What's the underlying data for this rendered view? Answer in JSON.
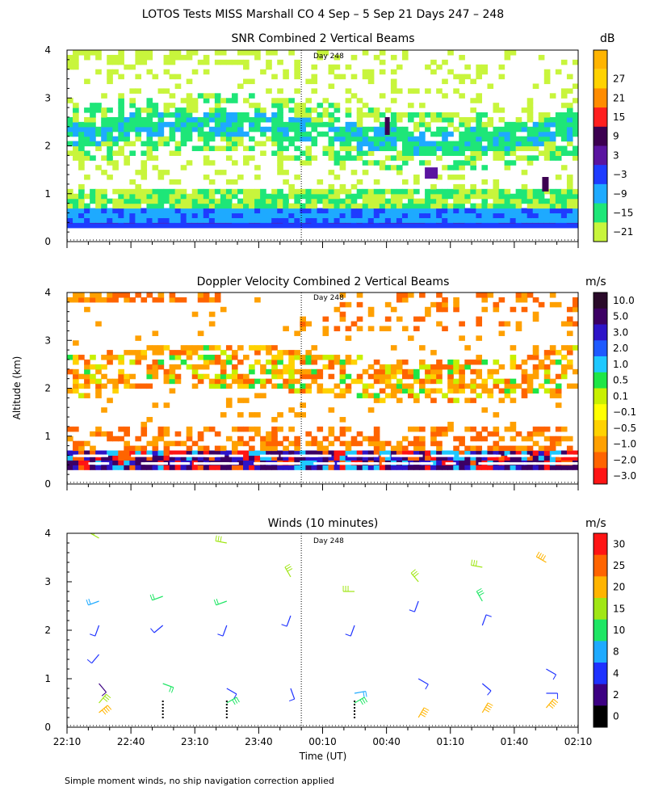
{
  "title": "LOTOS Tests MISS Marshall CO    4 Sep –  5 Sep 21 Days 247 – 248",
  "footnote": "Simple moment winds, no ship navigation correction applied",
  "ylabel_shared": "Altitude (km)",
  "chart_data": [
    {
      "type": "heatmap",
      "title": "SNR Combined 2 Vertical Beams",
      "units": "dB",
      "day_marker": "Day 248",
      "day_marker_time": "00:00",
      "xlim_hours_from_22": [
        0,
        4
      ],
      "ylim": [
        0,
        4
      ],
      "yticks": [
        "0",
        "1",
        "2",
        "3",
        "4"
      ],
      "colorbar": {
        "labels": [
          "27",
          "21",
          "15",
          "9",
          "3",
          "−3",
          "−9",
          "−15",
          "−21"
        ],
        "colors": [
          "#ffd200",
          "#ff8c00",
          "#ff1e1e",
          "#3c0050",
          "#5a14a0",
          "#1e3cff",
          "#1eaaff",
          "#1ee678",
          "#c8f53c"
        ],
        "top_color": "#ffb400"
      }
    },
    {
      "type": "heatmap",
      "title": "Doppler Velocity Combined 2 Vertical Beams",
      "units": "m/s",
      "day_marker": "Day 248",
      "day_marker_time": "00:00",
      "xlim_hours_from_22": [
        0,
        4
      ],
      "ylim": [
        0,
        4
      ],
      "yticks": [
        "0",
        "1",
        "2",
        "3",
        "4"
      ],
      "colorbar": {
        "labels": [
          "10.0",
          "5.0",
          "3.0",
          "2.0",
          "1.0",
          "0.5",
          "0.1",
          "−0.1",
          "−0.5",
          "−1.0",
          "−2.0",
          "−3.0"
        ],
        "colors": [
          "#2a0a2a",
          "#3c0064",
          "#2d14c8",
          "#1e5aff",
          "#1ec8ff",
          "#1ee646",
          "#c8f000",
          "#ffff00",
          "#ffd200",
          "#ffa000",
          "#ff6400",
          "#ff1414"
        ]
      }
    },
    {
      "type": "scatter",
      "title": "Winds (10 minutes)",
      "units": "m/s",
      "day_marker": "Day 248",
      "day_marker_time": "00:00",
      "xlabel": "Time (UT)",
      "xticks": [
        "22:10",
        "22:40",
        "23:10",
        "23:40",
        "00:10",
        "00:40",
        "01:10",
        "01:40",
        "02:10"
      ],
      "xlim_hours_from_22": [
        0,
        4
      ],
      "ylim": [
        0,
        4
      ],
      "yticks": [
        "0",
        "1",
        "2",
        "3",
        "4"
      ],
      "colorbar": {
        "labels": [
          "30",
          "25",
          "20",
          "15",
          "10",
          "8",
          "4",
          "2",
          "0"
        ],
        "colors": [
          "#ff1414",
          "#ff6400",
          "#ffb400",
          "#a0e614",
          "#1ee664",
          "#1eaaff",
          "#1e32ff",
          "#3c0082",
          "#000000"
        ]
      },
      "profile_times": [
        "22:25",
        "22:55",
        "23:25",
        "23:55",
        "00:25",
        "00:55",
        "01:25",
        "01:55"
      ],
      "barbs": [
        {
          "t": "22:25",
          "alt": 3.9,
          "speed": 16,
          "dir": 300
        },
        {
          "t": "22:25",
          "alt": 2.6,
          "speed": 9,
          "dir": 250
        },
        {
          "t": "22:25",
          "alt": 2.1,
          "speed": 6,
          "dir": 200
        },
        {
          "t": "22:25",
          "alt": 1.5,
          "speed": 4,
          "dir": 220
        },
        {
          "t": "22:25",
          "alt": 0.9,
          "speed": 3,
          "dir": 140
        },
        {
          "t": "22:25",
          "alt": 0.5,
          "speed": 16,
          "dir": 40
        },
        {
          "t": "22:25",
          "alt": 0.3,
          "speed": 22,
          "dir": 50
        },
        {
          "t": "22:55",
          "alt": 2.7,
          "speed": 12,
          "dir": 250
        },
        {
          "t": "22:55",
          "alt": 2.1,
          "speed": 6,
          "dir": 230
        },
        {
          "t": "22:55",
          "alt": 0.9,
          "speed": 12,
          "dir": 110
        },
        {
          "t": "23:25",
          "alt": 3.8,
          "speed": 16,
          "dir": 280
        },
        {
          "t": "23:25",
          "alt": 2.6,
          "speed": 12,
          "dir": 250
        },
        {
          "t": "23:25",
          "alt": 2.1,
          "speed": 6,
          "dir": 200
        },
        {
          "t": "23:25",
          "alt": 0.8,
          "speed": 5,
          "dir": 120
        },
        {
          "t": "23:25",
          "alt": 0.5,
          "speed": 14,
          "dir": 60
        },
        {
          "t": "23:55",
          "alt": 3.1,
          "speed": 16,
          "dir": 330
        },
        {
          "t": "23:55",
          "alt": 2.3,
          "speed": 6,
          "dir": 200
        },
        {
          "t": "23:55",
          "alt": 0.8,
          "speed": 4,
          "dir": 160
        },
        {
          "t": "00:25",
          "alt": 2.8,
          "speed": 17,
          "dir": 270
        },
        {
          "t": "00:25",
          "alt": 2.1,
          "speed": 6,
          "dir": 200
        },
        {
          "t": "00:25",
          "alt": 0.7,
          "speed": 8,
          "dir": 80
        },
        {
          "t": "00:25",
          "alt": 0.5,
          "speed": 14,
          "dir": 60
        },
        {
          "t": "00:55",
          "alt": 3.0,
          "speed": 16,
          "dir": 320
        },
        {
          "t": "00:55",
          "alt": 2.6,
          "speed": 6,
          "dir": 200
        },
        {
          "t": "00:55",
          "alt": 1.0,
          "speed": 4,
          "dir": 120
        },
        {
          "t": "00:55",
          "alt": 0.2,
          "speed": 22,
          "dir": 30
        },
        {
          "t": "01:25",
          "alt": 3.3,
          "speed": 16,
          "dir": 280
        },
        {
          "t": "01:25",
          "alt": 2.6,
          "speed": 14,
          "dir": 330
        },
        {
          "t": "01:25",
          "alt": 2.1,
          "speed": 4,
          "dir": 20
        },
        {
          "t": "01:25",
          "alt": 0.9,
          "speed": 4,
          "dir": 130
        },
        {
          "t": "01:25",
          "alt": 0.3,
          "speed": 22,
          "dir": 30
        },
        {
          "t": "01:55",
          "alt": 3.4,
          "speed": 22,
          "dir": 300
        },
        {
          "t": "01:55",
          "alt": 1.2,
          "speed": 4,
          "dir": 120
        },
        {
          "t": "01:55",
          "alt": 0.7,
          "speed": 4,
          "dir": 90
        },
        {
          "t": "01:55",
          "alt": 0.4,
          "speed": 22,
          "dir": 40
        }
      ]
    }
  ]
}
